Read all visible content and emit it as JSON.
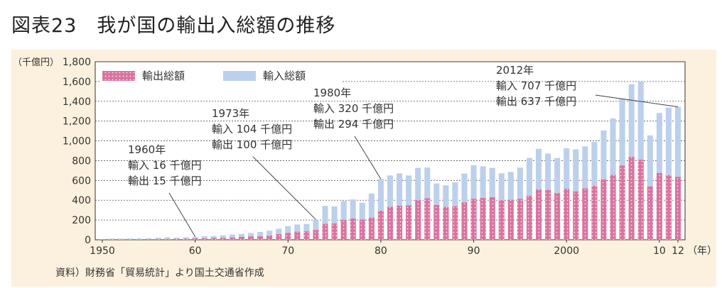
{
  "page": {
    "title": "図表23　我が国の輸出入総額の推移",
    "source": "資料）財務省「貿易統計」より国土交通省作成"
  },
  "colors": {
    "export": "#d9739f",
    "import": "#bcd0ec",
    "background": "#fbf1de"
  },
  "chart_data": {
    "type": "bar",
    "stacked": true,
    "ylabel": "（千億円）",
    "xunit": "（年）",
    "ylim": [
      0,
      1800
    ],
    "yticks": [
      0,
      200,
      400,
      600,
      800,
      1000,
      1200,
      1400,
      1600,
      1800
    ],
    "ytick_labels": [
      "0",
      "200",
      "400",
      "600",
      "800",
      "1,000",
      "1,200",
      "1,400",
      "1,600",
      "1,800"
    ],
    "xlim": [
      1950,
      2012
    ],
    "xticks": [
      {
        "year": 1950,
        "label": "1950"
      },
      {
        "year": 1960,
        "label": "60"
      },
      {
        "year": 1970,
        "label": "70"
      },
      {
        "year": 1980,
        "label": "80"
      },
      {
        "year": 1990,
        "label": "90"
      },
      {
        "year": 2000,
        "label": "2000"
      },
      {
        "year": 2010,
        "label": "10"
      },
      {
        "year": 2012,
        "label": "12"
      }
    ],
    "grid": true,
    "legend_position": "top-left",
    "categories": [
      1950,
      1951,
      1952,
      1953,
      1954,
      1955,
      1956,
      1957,
      1958,
      1959,
      1960,
      1961,
      1962,
      1963,
      1964,
      1965,
      1966,
      1967,
      1968,
      1969,
      1970,
      1971,
      1972,
      1973,
      1974,
      1975,
      1976,
      1977,
      1978,
      1979,
      1980,
      1981,
      1982,
      1983,
      1984,
      1985,
      1986,
      1987,
      1988,
      1989,
      1990,
      1991,
      1992,
      1993,
      1994,
      1995,
      1996,
      1997,
      1998,
      1999,
      2000,
      2001,
      2002,
      2003,
      2004,
      2005,
      2006,
      2007,
      2008,
      2009,
      2010,
      2011,
      2012
    ],
    "series": [
      {
        "name": "輸出総額",
        "color": "#d9739f",
        "values": [
          3,
          5,
          5,
          5,
          6,
          7,
          9,
          10,
          10,
          12,
          15,
          15,
          18,
          20,
          24,
          30,
          35,
          37,
          45,
          58,
          70,
          84,
          88,
          100,
          162,
          166,
          200,
          217,
          205,
          225,
          294,
          335,
          345,
          349,
          403,
          420,
          353,
          333,
          340,
          379,
          415,
          424,
          431,
          403,
          405,
          415,
          447,
          509,
          506,
          475,
          516,
          490,
          521,
          545,
          612,
          657,
          752,
          840,
          810,
          541,
          674,
          655,
          637
        ]
      },
      {
        "name": "輸入総額",
        "color": "#bcd0ec",
        "values": [
          3,
          7,
          7,
          9,
          9,
          9,
          12,
          15,
          11,
          13,
          16,
          21,
          20,
          25,
          29,
          29,
          34,
          42,
          47,
          54,
          68,
          70,
          72,
          104,
          181,
          172,
          192,
          191,
          168,
          243,
          320,
          315,
          326,
          301,
          323,
          310,
          216,
          218,
          240,
          290,
          339,
          319,
          296,
          269,
          281,
          315,
          380,
          410,
          366,
          352,
          410,
          424,
          423,
          444,
          493,
          569,
          673,
          732,
          789,
          514,
          608,
          681,
          707
        ]
      }
    ],
    "annotations": [
      {
        "lines": [
          "1960年",
          "輸入 16 千億円",
          "輸出 15 千億円"
        ],
        "target_year": 1960
      },
      {
        "lines": [
          "1973年",
          "輸入 104 千億円",
          "輸出 100 千億円"
        ],
        "target_year": 1973
      },
      {
        "lines": [
          "1980年",
          "輸入 320 千億円",
          "輸出 294 千億円"
        ],
        "target_year": 1980
      },
      {
        "lines": [
          "2012年",
          "輸入 707 千億円",
          "輸出 637 千億円"
        ],
        "target_year": 2012
      }
    ]
  }
}
